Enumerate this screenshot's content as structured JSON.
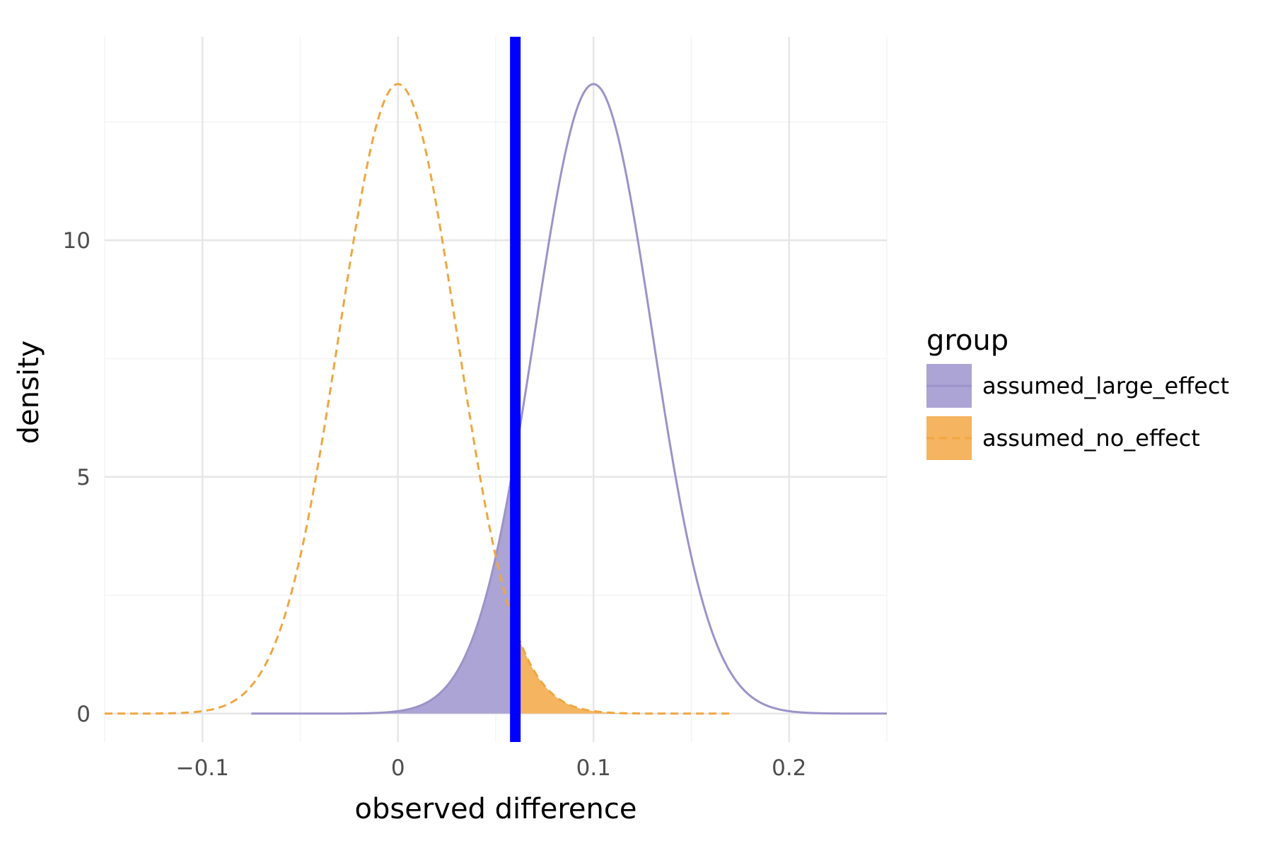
{
  "chart_data": {
    "type": "area",
    "title": "",
    "xlabel": "observed difference",
    "ylabel": "density",
    "xlim": [
      -0.15,
      0.25
    ],
    "ylim": [
      -0.6,
      14.3
    ],
    "x_ticks": [
      -0.1,
      0,
      0.1,
      0.2
    ],
    "x_tick_labels": [
      "−0.1",
      "0",
      "0.1",
      "0.2"
    ],
    "y_ticks": [
      0,
      5,
      10
    ],
    "y_tick_labels": [
      "0",
      "5",
      "10"
    ],
    "grid": true,
    "observed_line": {
      "x": 0.06,
      "color": "#0000ff"
    },
    "legend": {
      "title": "group",
      "position": "right"
    },
    "series": [
      {
        "name": "assumed_large_effect",
        "distribution": "normal",
        "mean": 0.1,
        "sd": 0.03,
        "x_range": [
          -0.075,
          0.25
        ],
        "peak_density": 13.3,
        "line_color": "#9b93c9",
        "fill_color": "#aba4d4",
        "line_style": "solid",
        "shaded_region": [
          -0.075,
          0.06
        ]
      },
      {
        "name": "assumed_no_effect",
        "distribution": "normal",
        "mean": 0.0,
        "sd": 0.03,
        "x_range": [
          -0.15,
          0.17
        ],
        "peak_density": 13.3,
        "line_color": "#f0a640",
        "fill_color": "#f4b460",
        "line_style": "dashed",
        "shaded_region": [
          0.06,
          0.17
        ]
      }
    ]
  }
}
